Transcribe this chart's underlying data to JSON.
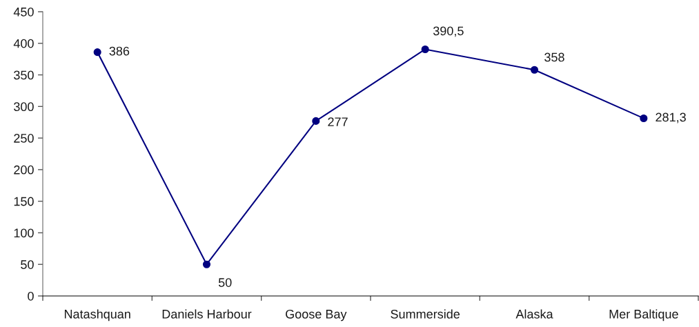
{
  "chart_data": {
    "type": "line",
    "categories": [
      "Natashquan",
      "Daniels Harbour",
      "Goose Bay",
      "Summerside",
      "Alaska",
      "Mer Baltique"
    ],
    "series": [
      {
        "color": "#000080",
        "values": [
          386,
          50,
          277,
          390.5,
          358,
          281.3
        ],
        "value_labels": [
          "386",
          "50",
          "277",
          "390,5",
          "358",
          "281,3"
        ]
      }
    ],
    "ylim": [
      0,
      450
    ],
    "yticks": [
      0,
      50,
      100,
      150,
      200,
      250,
      300,
      350,
      400,
      450
    ],
    "marker": "circle",
    "line_style": "solid",
    "grid": false
  }
}
